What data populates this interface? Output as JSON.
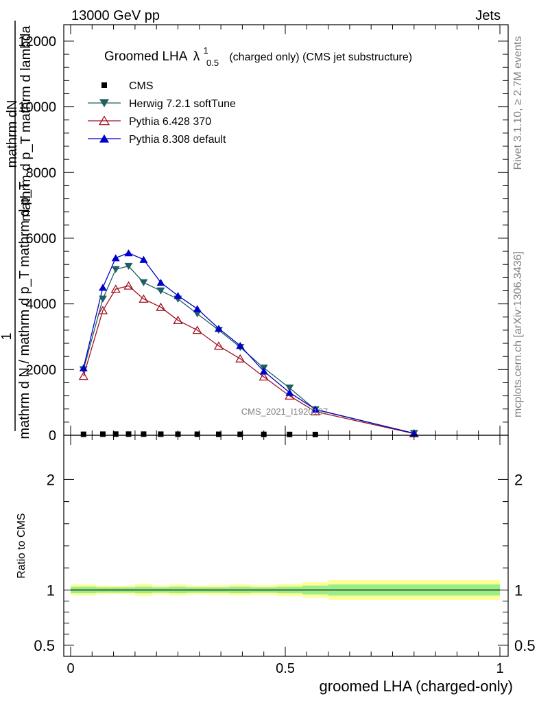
{
  "header": {
    "energy_label": "13000 GeV pp",
    "process_label": "Jets",
    "side_note_top": "Rivet 3.1.10, ≥ 2.7M events",
    "side_note_bottom": "mcplots.cern.ch [arXiv:1306.3436]",
    "watermark": "CMS_2021_I1920187"
  },
  "main": {
    "title_prefix": "Groomed LHA",
    "title_symbol": "λ",
    "title_sup": "1",
    "title_sub": "0.5",
    "title_suffix": "(charged only) (CMS jet substructure)",
    "ylabel_top": "mathrm dN",
    "ylabel_top2": "mathrm d p_T mathrm d lambda",
    "ylabel_one": "1",
    "ylabel_bottom": "mathrm d N / mathrm d p_T mathrm d p_T",
    "yticks": [
      "0",
      "2000",
      "4000",
      "6000",
      "8000",
      "10000",
      "12000"
    ]
  },
  "ratio": {
    "ylabel": "Ratio to CMS",
    "yticks": [
      "0.5",
      "1",
      "2"
    ],
    "xticks": [
      "0",
      "0.5",
      "1"
    ],
    "xlabel": "groomed LHA (charged-only)"
  },
  "legend": [
    {
      "name": "CMS",
      "color": "#000000",
      "marker": "square"
    },
    {
      "name": "Herwig 7.2.1 softTune",
      "color": "#1f5f5f",
      "marker": "triangle-down"
    },
    {
      "name": "Pythia 6.428 370",
      "color": "#a01020",
      "marker": "triangle-open"
    },
    {
      "name": "Pythia 8.308 default",
      "color": "#0000cc",
      "marker": "triangle-up"
    }
  ],
  "chart_data": {
    "type": "line",
    "xlim": [
      0,
      1
    ],
    "ylim": [
      0,
      12500
    ],
    "x": [
      0.03,
      0.075,
      0.105,
      0.135,
      0.17,
      0.21,
      0.25,
      0.295,
      0.345,
      0.395,
      0.45,
      0.51,
      0.57,
      0.8
    ],
    "series": [
      {
        "name": "CMS",
        "values": [
          8,
          12,
          14,
          14,
          13,
          12,
          11,
          10,
          9,
          8,
          6,
          4,
          2,
          0.5
        ]
      },
      {
        "name": "Herwig 7.2.1 softTune",
        "values": [
          2000,
          4150,
          5050,
          5150,
          4650,
          4400,
          4150,
          3700,
          3200,
          2680,
          2050,
          1440,
          780,
          60
        ]
      },
      {
        "name": "Pythia 6.428 370",
        "values": [
          1800,
          3800,
          4450,
          4550,
          4150,
          3900,
          3500,
          3200,
          2720,
          2330,
          1780,
          1200,
          720,
          50
        ]
      },
      {
        "name": "Pythia 8.308 default",
        "values": [
          2050,
          4500,
          5400,
          5550,
          5350,
          4650,
          4250,
          3850,
          3250,
          2730,
          1950,
          1300,
          790,
          60
        ]
      }
    ],
    "ratio": {
      "ylim": [
        0.4,
        2.4
      ],
      "x_edges": [
        0,
        0.06,
        0.09,
        0.12,
        0.15,
        0.19,
        0.23,
        0.27,
        0.32,
        0.37,
        0.42,
        0.48,
        0.54,
        0.6,
        1.0
      ],
      "stat_band": [
        0.03,
        0.025,
        0.025,
        0.025,
        0.03,
        0.025,
        0.03,
        0.025,
        0.025,
        0.03,
        0.025,
        0.03,
        0.04,
        0.05
      ],
      "total_band": [
        0.05,
        0.04,
        0.035,
        0.04,
        0.055,
        0.04,
        0.05,
        0.04,
        0.045,
        0.05,
        0.045,
        0.055,
        0.07,
        0.09
      ]
    }
  }
}
